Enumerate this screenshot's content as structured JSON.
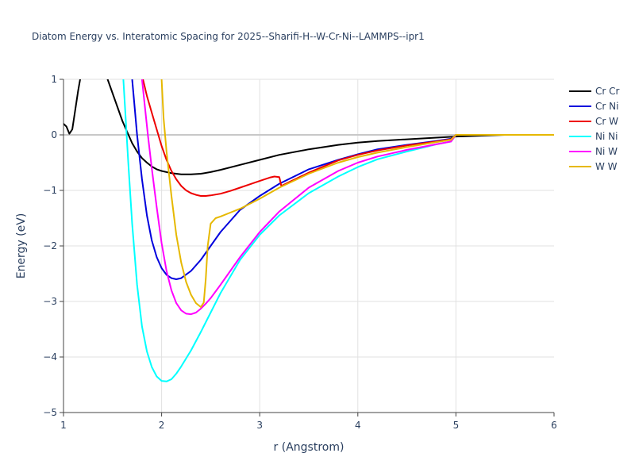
{
  "chart_data": {
    "type": "line",
    "title": "Diatom Energy vs. Interatomic Spacing for 2025--Sharifi-H--W-Cr-Ni--LAMMPS--ipr1",
    "xlabel": "r (Angstrom)",
    "ylabel": "Energy (eV)",
    "xlim": [
      1,
      6
    ],
    "ylim": [
      -5,
      1
    ],
    "xticks": [
      "1",
      "2",
      "3",
      "4",
      "5",
      "6"
    ],
    "yticks": [
      "1",
      "0",
      "−1",
      "−2",
      "−3",
      "−4",
      "−5"
    ],
    "grid": true,
    "legend_position": "right",
    "series": [
      {
        "name": "Cr Cr",
        "color": "#000000",
        "x": [
          1.0,
          1.03,
          1.06,
          1.09,
          1.12,
          1.15,
          1.18,
          1.2,
          1.3,
          1.4,
          1.45,
          1.5,
          1.55,
          1.6,
          1.65,
          1.7,
          1.75,
          1.8,
          1.85,
          1.9,
          1.95,
          2.0,
          2.1,
          2.2,
          2.3,
          2.4,
          2.5,
          2.6,
          2.8,
          3.0,
          3.2,
          3.5,
          3.8,
          4.0,
          4.2,
          4.5,
          4.8,
          5.0,
          5.5,
          6.0
        ],
        "y": [
          0.2,
          0.15,
          0.02,
          0.1,
          0.45,
          0.8,
          1.1,
          1.4,
          1.7,
          1.4,
          1.0,
          0.75,
          0.5,
          0.25,
          0.05,
          -0.15,
          -0.3,
          -0.42,
          -0.5,
          -0.57,
          -0.62,
          -0.65,
          -0.69,
          -0.71,
          -0.71,
          -0.7,
          -0.67,
          -0.63,
          -0.54,
          -0.45,
          -0.36,
          -0.26,
          -0.18,
          -0.14,
          -0.11,
          -0.08,
          -0.05,
          -0.03,
          0.0,
          0.0
        ]
      },
      {
        "name": "Cr Ni",
        "color": "#0000dd",
        "x": [
          1.7,
          1.72,
          1.75,
          1.8,
          1.85,
          1.9,
          1.95,
          2.0,
          2.05,
          2.1,
          2.15,
          2.2,
          2.3,
          2.4,
          2.5,
          2.6,
          2.8,
          3.0,
          3.2,
          3.5,
          3.8,
          4.0,
          4.2,
          4.5,
          4.8,
          4.95,
          5.0,
          5.5,
          6.0
        ],
        "y": [
          1.0,
          0.6,
          0.0,
          -0.8,
          -1.45,
          -1.9,
          -2.2,
          -2.4,
          -2.52,
          -2.58,
          -2.6,
          -2.58,
          -2.45,
          -2.25,
          -2.0,
          -1.75,
          -1.35,
          -1.1,
          -0.88,
          -0.62,
          -0.45,
          -0.35,
          -0.26,
          -0.18,
          -0.11,
          -0.07,
          0.0,
          0.0,
          0.0
        ]
      },
      {
        "name": "Cr W",
        "color": "#ee0000",
        "x": [
          1.81,
          1.85,
          1.9,
          1.95,
          2.0,
          2.05,
          2.1,
          2.15,
          2.2,
          2.25,
          2.3,
          2.35,
          2.4,
          2.45,
          2.5,
          2.6,
          2.7,
          2.8,
          2.9,
          3.0,
          3.1,
          3.15,
          3.2,
          3.22,
          3.3,
          3.5,
          3.8,
          4.0,
          4.2,
          4.5,
          4.8,
          4.95,
          5.0,
          5.5,
          6.0
        ],
        "y": [
          1.0,
          0.7,
          0.4,
          0.1,
          -0.2,
          -0.45,
          -0.65,
          -0.8,
          -0.92,
          -1.0,
          -1.05,
          -1.08,
          -1.1,
          -1.1,
          -1.09,
          -1.06,
          -1.01,
          -0.95,
          -0.89,
          -0.83,
          -0.77,
          -0.75,
          -0.76,
          -0.92,
          -0.85,
          -0.68,
          -0.46,
          -0.36,
          -0.28,
          -0.19,
          -0.12,
          -0.08,
          0.0,
          0.0,
          0.0
        ]
      },
      {
        "name": "Ni Ni",
        "color": "#00ffff",
        "x": [
          1.61,
          1.63,
          1.66,
          1.7,
          1.75,
          1.8,
          1.85,
          1.9,
          1.95,
          2.0,
          2.05,
          2.1,
          2.15,
          2.2,
          2.3,
          2.4,
          2.5,
          2.6,
          2.8,
          3.0,
          3.2,
          3.5,
          3.8,
          4.0,
          4.2,
          4.5,
          4.8,
          4.95,
          5.0,
          5.5,
          6.0
        ],
        "y": [
          1.0,
          0.4,
          -0.5,
          -1.6,
          -2.7,
          -3.45,
          -3.9,
          -4.18,
          -4.35,
          -4.43,
          -4.44,
          -4.4,
          -4.3,
          -4.17,
          -3.88,
          -3.55,
          -3.2,
          -2.85,
          -2.25,
          -1.8,
          -1.45,
          -1.05,
          -0.75,
          -0.58,
          -0.44,
          -0.3,
          -0.17,
          -0.12,
          0.0,
          0.0,
          0.0
        ]
      },
      {
        "name": "Ni W",
        "color": "#ff00ff",
        "x": [
          1.8,
          1.83,
          1.86,
          1.9,
          1.95,
          2.0,
          2.05,
          2.1,
          2.15,
          2.2,
          2.25,
          2.3,
          2.35,
          2.4,
          2.45,
          2.5,
          2.6,
          2.8,
          3.0,
          3.2,
          3.5,
          3.8,
          4.0,
          4.2,
          4.5,
          4.8,
          4.95,
          5.0,
          5.5,
          6.0
        ],
        "y": [
          1.0,
          0.5,
          0.0,
          -0.6,
          -1.3,
          -1.95,
          -2.45,
          -2.8,
          -3.03,
          -3.16,
          -3.22,
          -3.23,
          -3.2,
          -3.13,
          -3.04,
          -2.94,
          -2.7,
          -2.2,
          -1.75,
          -1.38,
          -0.95,
          -0.65,
          -0.5,
          -0.39,
          -0.27,
          -0.17,
          -0.12,
          0.0,
          0.0,
          0.0
        ]
      },
      {
        "name": "W W",
        "color": "#e6b800",
        "x": [
          2.0,
          2.02,
          2.05,
          2.1,
          2.15,
          2.2,
          2.25,
          2.3,
          2.35,
          2.4,
          2.43,
          2.45,
          2.47,
          2.5,
          2.55,
          2.6,
          2.7,
          2.8,
          3.0,
          3.2,
          3.5,
          3.8,
          4.0,
          4.2,
          4.5,
          4.8,
          4.95,
          5.0,
          5.5,
          6.0
        ],
        "y": [
          1.0,
          0.3,
          -0.3,
          -1.1,
          -1.8,
          -2.3,
          -2.65,
          -2.88,
          -3.03,
          -3.1,
          -3.02,
          -2.6,
          -2.0,
          -1.6,
          -1.5,
          -1.47,
          -1.4,
          -1.33,
          -1.15,
          -0.95,
          -0.7,
          -0.5,
          -0.4,
          -0.32,
          -0.22,
          -0.13,
          -0.09,
          0.0,
          0.0,
          0.0
        ]
      }
    ]
  }
}
